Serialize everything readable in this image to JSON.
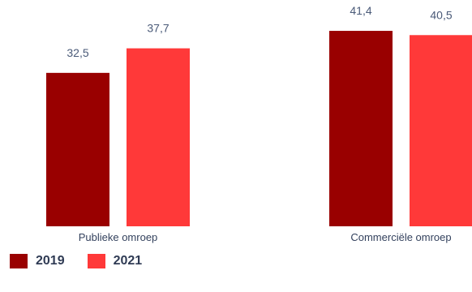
{
  "chart_data": {
    "type": "bar",
    "categories": [
      "Publieke omroep",
      "Commerciële omroep"
    ],
    "series": [
      {
        "name": "2019",
        "color": "#990000",
        "values": [
          32.5,
          41.4
        ],
        "value_labels": [
          "32,5",
          "41,4"
        ]
      },
      {
        "name": "2021",
        "color": "#ff3939",
        "values": [
          37.7,
          40.5
        ],
        "value_labels": [
          "37,7",
          "40,5"
        ]
      }
    ],
    "ylim": [
      0,
      44.5
    ],
    "grid": false,
    "legend_position": "bottom-left"
  }
}
